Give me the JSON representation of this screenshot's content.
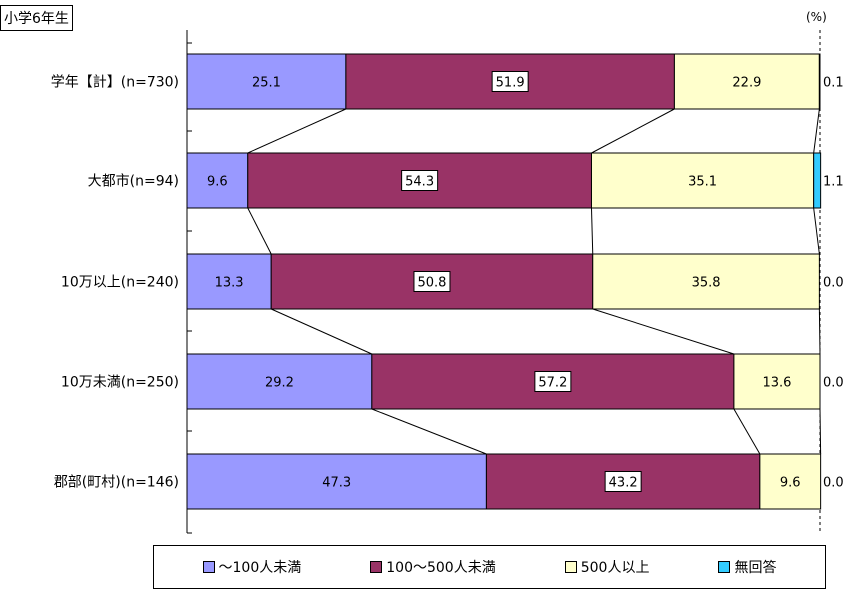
{
  "header": {
    "title": "小学6年生",
    "unit": "(%)"
  },
  "chart_data": {
    "type": "bar",
    "stacked": true,
    "orientation": "horizontal",
    "xlim": [
      0,
      100
    ],
    "categories": [
      "学年【計】(n=730)",
      "大都市(n=94)",
      "10万以上(n=240)",
      "10万未満(n=250)",
      "郡部(町村)(n=146)"
    ],
    "series": [
      {
        "name": "～100人未満",
        "color": "#9999ff",
        "values": [
          25.1,
          9.6,
          13.3,
          29.2,
          47.3
        ],
        "labels": [
          "25.1",
          "9.6",
          "13.3",
          "29.2",
          "47.3"
        ],
        "label_box": false
      },
      {
        "name": "100～500人未満",
        "color": "#993366",
        "values": [
          51.9,
          54.3,
          50.8,
          57.2,
          43.2
        ],
        "labels": [
          "51.9",
          "54.3",
          "50.8",
          "57.2",
          "43.2"
        ],
        "label_box": true
      },
      {
        "name": "500人以上",
        "color": "#ffffcc",
        "values": [
          22.9,
          35.1,
          35.8,
          13.6,
          9.6
        ],
        "labels": [
          "22.9",
          "35.1",
          "35.8",
          "13.6",
          "9.6"
        ],
        "label_box": false
      },
      {
        "name": "無回答",
        "color": "#33ccff",
        "values": [
          0.1,
          1.1,
          0.0,
          0.0,
          0.0
        ],
        "labels": [
          "0.1",
          "1.1",
          "0.0",
          "0.0",
          "0.0"
        ],
        "label_box": false
      }
    ],
    "connector_lines": true,
    "legend_position": "bottom"
  }
}
